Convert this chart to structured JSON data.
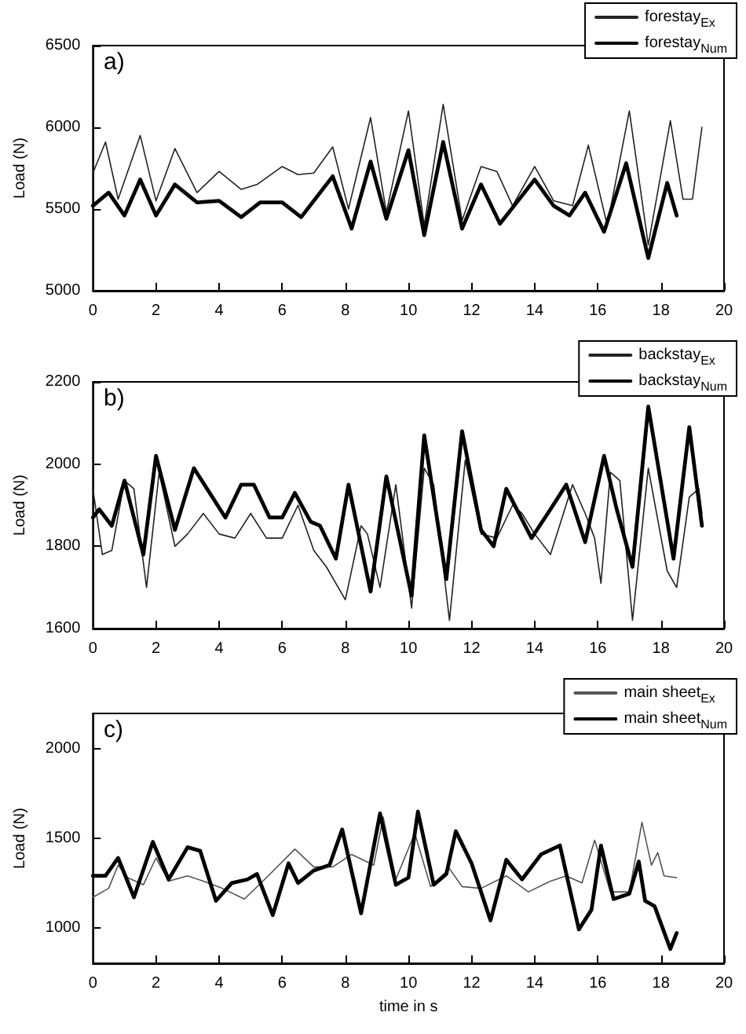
{
  "chart_data": [
    {
      "type": "line",
      "ylabel": "Load (N)",
      "annotations": [
        "a)"
      ],
      "xlim": [
        0,
        20
      ],
      "xticks": [
        0,
        2,
        4,
        6,
        8,
        10,
        12,
        14,
        16,
        18,
        20
      ],
      "ylim": [
        5000,
        6500
      ],
      "yticks": [
        5000,
        5500,
        6000,
        6500
      ],
      "grid": false,
      "legend": "top right",
      "marker": "none",
      "line_style": "solid",
      "series": [
        {
          "name": "forestay$_{Ex}$",
          "color": "#222222",
          "x": [
            0,
            0.4,
            0.8,
            1.5,
            2.0,
            2.6,
            3.3,
            4.0,
            4.7,
            5.2,
            6.0,
            6.5,
            7.0,
            7.6,
            8.1,
            8.8,
            9.3,
            10.0,
            10.5,
            11.1,
            11.7,
            12.3,
            12.8,
            13.3,
            14.0,
            14.6,
            15.2,
            15.7,
            16.3,
            17.0,
            17.6,
            18.3,
            18.7,
            19.0,
            19.3
          ],
          "values": [
            5720,
            5910,
            5560,
            5950,
            5550,
            5870,
            5600,
            5730,
            5620,
            5650,
            5760,
            5710,
            5720,
            5880,
            5500,
            6060,
            5480,
            6100,
            5400,
            6140,
            5430,
            5760,
            5730,
            5520,
            5760,
            5550,
            5520,
            5890,
            5400,
            6100,
            5280,
            6040,
            5560,
            5560,
            6000
          ]
        },
        {
          "name": "forestay$_{Num}$",
          "color": "#000000",
          "x": [
            0,
            0.5,
            1.0,
            1.5,
            2.0,
            2.6,
            3.3,
            4.0,
            4.7,
            5.3,
            6.0,
            6.6,
            7.6,
            8.2,
            8.8,
            9.3,
            10.0,
            10.5,
            11.1,
            11.7,
            12.3,
            12.9,
            14.0,
            14.6,
            15.1,
            15.6,
            16.2,
            16.9,
            17.6,
            18.2,
            18.5
          ],
          "values": [
            5520,
            5600,
            5460,
            5680,
            5460,
            5650,
            5540,
            5550,
            5450,
            5540,
            5540,
            5450,
            5700,
            5380,
            5790,
            5440,
            5860,
            5340,
            5910,
            5380,
            5650,
            5410,
            5680,
            5520,
            5460,
            5600,
            5360,
            5780,
            5200,
            5660,
            5460
          ]
        }
      ]
    },
    {
      "type": "line",
      "ylabel": "Load (N)",
      "annotations": [
        "b)"
      ],
      "xlim": [
        0,
        20
      ],
      "xticks": [
        0,
        2,
        4,
        6,
        8,
        10,
        12,
        14,
        16,
        18,
        20
      ],
      "ylim": [
        1600,
        2200
      ],
      "yticks": [
        1600,
        1800,
        2000,
        2200
      ],
      "grid": false,
      "legend": "top right",
      "marker": "none",
      "line_style": "solid",
      "series": [
        {
          "name": "backstay$_{Ex}$",
          "color": "#222222",
          "x": [
            0,
            0.3,
            0.6,
            1.0,
            1.3,
            1.7,
            2.1,
            2.6,
            3.0,
            3.5,
            4.0,
            4.5,
            5.0,
            5.5,
            6.0,
            6.5,
            7.0,
            7.4,
            8.0,
            8.5,
            8.7,
            9.1,
            9.6,
            10.1,
            10.5,
            10.8,
            11.3,
            11.8,
            12.3,
            12.8,
            13.3,
            13.6,
            14.0,
            14.5,
            15.2,
            15.6,
            15.9,
            16.1,
            16.4,
            16.7,
            17.1,
            17.6,
            18.2,
            18.5,
            18.9,
            19.2,
            19.3
          ],
          "values": [
            1940,
            1780,
            1790,
            1960,
            1940,
            1700,
            1980,
            1800,
            1830,
            1880,
            1830,
            1820,
            1880,
            1820,
            1820,
            1900,
            1790,
            1750,
            1670,
            1850,
            1830,
            1700,
            1950,
            1650,
            1990,
            1950,
            1620,
            2010,
            1830,
            1820,
            1900,
            1880,
            1830,
            1780,
            1950,
            1880,
            1820,
            1710,
            1980,
            1960,
            1620,
            1990,
            1740,
            1700,
            1920,
            1940,
            1880
          ]
        },
        {
          "name": "backstay$_{Num}$",
          "color": "#000000",
          "x": [
            0,
            0.2,
            0.6,
            1.0,
            1.6,
            2.0,
            2.6,
            3.2,
            4.2,
            4.7,
            5.1,
            5.6,
            6.0,
            6.4,
            6.9,
            7.2,
            7.7,
            8.1,
            8.8,
            9.3,
            10.1,
            10.5,
            11.2,
            11.7,
            12.3,
            12.7,
            13.1,
            13.9,
            14.5,
            15.0,
            15.6,
            16.2,
            16.6,
            17.1,
            17.6,
            18.4,
            18.9,
            19.2,
            19.3
          ],
          "values": [
            1870,
            1890,
            1850,
            1960,
            1780,
            2020,
            1840,
            1990,
            1870,
            1950,
            1950,
            1870,
            1870,
            1930,
            1860,
            1850,
            1770,
            1950,
            1690,
            1970,
            1680,
            2070,
            1720,
            2080,
            1840,
            1800,
            1940,
            1820,
            1890,
            1950,
            1810,
            2020,
            1890,
            1750,
            2140,
            1770,
            2090,
            1910,
            1850
          ]
        }
      ]
    },
    {
      "type": "line",
      "xlabel": "time in s",
      "ylabel": "Load (N)",
      "annotations": [
        "c)"
      ],
      "xlim": [
        0,
        20
      ],
      "xticks": [
        0,
        2,
        4,
        6,
        8,
        10,
        12,
        14,
        16,
        18,
        20
      ],
      "ylim": [
        800,
        2200
      ],
      "yticks": [
        1000,
        1500,
        2000
      ],
      "grid": false,
      "legend": "top right",
      "marker": "none",
      "line_style": "solid",
      "series": [
        {
          "name": "main sheet$_{Ex}$",
          "color": "#555555",
          "x": [
            0,
            0.5,
            0.8,
            1.1,
            1.6,
            2.0,
            2.4,
            3.0,
            3.5,
            4.1,
            4.8,
            5.5,
            6.4,
            7.0,
            7.6,
            8.2,
            8.9,
            9.2,
            9.6,
            10.2,
            10.7,
            11.3,
            11.7,
            12.3,
            13.1,
            13.8,
            14.5,
            15.0,
            15.5,
            15.9,
            16.4,
            17.0,
            17.4,
            17.7,
            17.9,
            18.1,
            18.5
          ],
          "values": [
            1170,
            1220,
            1350,
            1280,
            1240,
            1390,
            1260,
            1290,
            1260,
            1220,
            1160,
            1280,
            1440,
            1340,
            1340,
            1410,
            1350,
            1620,
            1270,
            1530,
            1230,
            1330,
            1230,
            1220,
            1290,
            1200,
            1260,
            1290,
            1250,
            1490,
            1200,
            1200,
            1590,
            1350,
            1420,
            1290,
            1280
          ]
        },
        {
          "name": "main sheet$_{Num}$",
          "color": "#000000",
          "x": [
            0,
            0.4,
            0.8,
            1.3,
            1.9,
            2.4,
            3.0,
            3.4,
            3.9,
            4.4,
            4.9,
            5.2,
            5.7,
            6.2,
            6.5,
            7.0,
            7.5,
            7.9,
            8.5,
            9.1,
            9.6,
            10.0,
            10.3,
            10.8,
            11.2,
            11.5,
            12.0,
            12.6,
            13.1,
            13.6,
            14.2,
            14.8,
            15.4,
            15.8,
            16.1,
            16.5,
            17.0,
            17.3,
            17.5,
            17.8,
            18.3,
            18.5
          ],
          "values": [
            1290,
            1290,
            1390,
            1170,
            1480,
            1270,
            1450,
            1430,
            1150,
            1250,
            1270,
            1300,
            1070,
            1360,
            1250,
            1320,
            1350,
            1550,
            1080,
            1640,
            1240,
            1280,
            1650,
            1240,
            1300,
            1540,
            1360,
            1040,
            1380,
            1270,
            1410,
            1460,
            990,
            1100,
            1460,
            1160,
            1190,
            1370,
            1150,
            1120,
            880,
            970
          ]
        }
      ]
    }
  ]
}
